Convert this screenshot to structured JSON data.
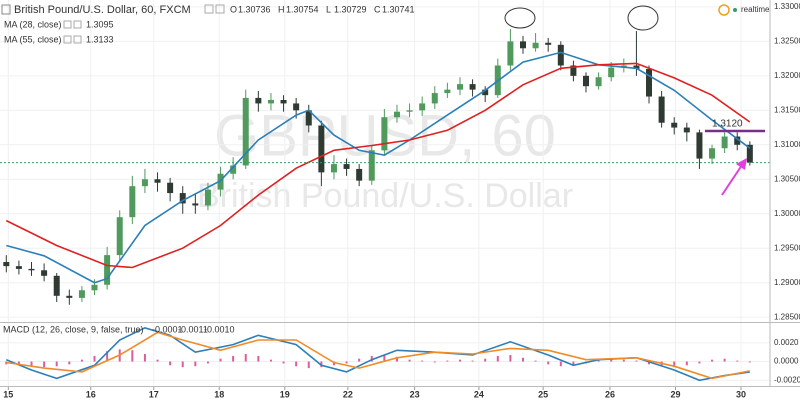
{
  "chart_data": [
    {
      "type": "candlestick",
      "title": "British Pound/U.S. Dollar, 60, FXCM",
      "status": "realtime",
      "watermark": {
        "symbol": "GBPUSD, 60",
        "description": "British Pound/U.S. Dollar"
      },
      "quote": [
        {
          "key": "O",
          "value": 1.30736
        },
        {
          "key": "H",
          "value": 1.30754
        },
        {
          "key": "L",
          "value": 1.30729
        },
        {
          "key": "C",
          "value": 1.30741
        }
      ],
      "up_color": "#4f9a5c",
      "down_color": "#2f3a33",
      "last_color": "#3a9a5a",
      "xlim": [
        -0.5,
        60.6
      ],
      "xticks": [
        {
          "value": 0.16,
          "label": "15"
        },
        {
          "value": 6.7,
          "label": "16"
        },
        {
          "value": 11.7,
          "label": "17"
        },
        {
          "value": 16.9,
          "label": "18"
        },
        {
          "value": 22.1,
          "label": "19"
        },
        {
          "value": 27.1,
          "label": "22"
        },
        {
          "value": 32.4,
          "label": "23"
        },
        {
          "value": 37.5,
          "label": "24"
        },
        {
          "value": 42.6,
          "label": "25"
        },
        {
          "value": 47.9,
          "label": "26"
        },
        {
          "value": 53.1,
          "label": "29"
        },
        {
          "value": 58.3,
          "label": "30"
        }
      ],
      "ylim": [
        1.2843,
        1.331
      ],
      "yticks": [
        {
          "value": 1.285,
          "label": "1.28500"
        },
        {
          "value": 1.29,
          "label": "1.29000"
        },
        {
          "value": 1.295,
          "label": "1.29500"
        },
        {
          "value": 1.3,
          "label": "1.30000"
        },
        {
          "value": 1.305,
          "label": "1.30500"
        },
        {
          "value": 1.31,
          "label": "1.31000"
        },
        {
          "value": 1.315,
          "label": "1.31500"
        },
        {
          "value": 1.32,
          "label": "1.32000"
        },
        {
          "value": 1.325,
          "label": "1.32500"
        },
        {
          "value": 1.33,
          "label": "1.33000"
        }
      ],
      "grid": true,
      "level_line": {
        "value": 1.312,
        "label": "1.3120",
        "color": "#7b2d8e",
        "label_color": "#e0245e"
      },
      "ohlc": [
        [
          1.293,
          1.294,
          1.2915,
          1.2924
        ],
        [
          1.2924,
          1.2932,
          1.2912,
          1.292
        ],
        [
          1.292,
          1.293,
          1.291,
          1.2918
        ],
        [
          1.2918,
          1.2928,
          1.2902,
          1.291
        ],
        [
          1.291,
          1.2914,
          1.2872,
          1.2881
        ],
        [
          1.2881,
          1.289,
          1.2868,
          1.2878
        ],
        [
          1.2878,
          1.2895,
          1.2872,
          1.2889
        ],
        [
          1.2889,
          1.2905,
          1.2882,
          1.2897
        ],
        [
          1.2897,
          1.2952,
          1.289,
          1.294
        ],
        [
          1.294,
          1.3005,
          1.293,
          1.2995
        ],
        [
          1.2995,
          1.3055,
          1.2985,
          1.304
        ],
        [
          1.304,
          1.3065,
          1.303,
          1.305
        ],
        [
          1.305,
          1.306,
          1.3032,
          1.3045
        ],
        [
          1.3045,
          1.3052,
          1.3018,
          1.303
        ],
        [
          1.303,
          1.304,
          1.3,
          1.3015
        ],
        [
          1.3015,
          1.303,
          1.3,
          1.3012
        ],
        [
          1.3012,
          1.3045,
          1.3005,
          1.3035
        ],
        [
          1.3035,
          1.3068,
          1.3025,
          1.3058
        ],
        [
          1.3058,
          1.3082,
          1.305,
          1.307
        ],
        [
          1.307,
          1.318,
          1.3065,
          1.3168
        ],
        [
          1.3168,
          1.3178,
          1.3148,
          1.316
        ],
        [
          1.316,
          1.3175,
          1.315,
          1.3165
        ],
        [
          1.3165,
          1.3172,
          1.3148,
          1.316
        ],
        [
          1.316,
          1.3168,
          1.3138,
          1.315
        ],
        [
          1.315,
          1.3158,
          1.3118,
          1.3128
        ],
        [
          1.3128,
          1.3135,
          1.304,
          1.306
        ],
        [
          1.306,
          1.3085,
          1.305,
          1.3072
        ],
        [
          1.3072,
          1.308,
          1.3055,
          1.3065
        ],
        [
          1.3065,
          1.3072,
          1.304,
          1.3048
        ],
        [
          1.3048,
          1.31,
          1.3042,
          1.3092
        ],
        [
          1.3092,
          1.3152,
          1.3085,
          1.314
        ],
        [
          1.314,
          1.3158,
          1.3132,
          1.3148
        ],
        [
          1.3148,
          1.316,
          1.314,
          1.315
        ],
        [
          1.315,
          1.317,
          1.3142,
          1.316
        ],
        [
          1.316,
          1.3185,
          1.3152,
          1.3175
        ],
        [
          1.3175,
          1.319,
          1.3168,
          1.318
        ],
        [
          1.318,
          1.3198,
          1.3172,
          1.3188
        ],
        [
          1.3188,
          1.3195,
          1.317,
          1.318
        ],
        [
          1.318,
          1.3185,
          1.3162,
          1.3172
        ],
        [
          1.3172,
          1.3225,
          1.3168,
          1.3215
        ],
        [
          1.3215,
          1.3268,
          1.3208,
          1.325
        ],
        [
          1.325,
          1.3258,
          1.3232,
          1.324
        ],
        [
          1.324,
          1.3262,
          1.3235,
          1.3248
        ],
        [
          1.3248,
          1.3255,
          1.3235,
          1.3245
        ],
        [
          1.3245,
          1.325,
          1.3208,
          1.3215
        ],
        [
          1.3215,
          1.3222,
          1.3192,
          1.32
        ],
        [
          1.32,
          1.3205,
          1.3176,
          1.3185
        ],
        [
          1.3185,
          1.3205,
          1.318,
          1.3198
        ],
        [
          1.3198,
          1.322,
          1.3192,
          1.3212
        ],
        [
          1.3212,
          1.3225,
          1.3205,
          1.3215
        ],
        [
          1.3215,
          1.3265,
          1.32,
          1.321
        ],
        [
          1.321,
          1.3215,
          1.316,
          1.317
        ],
        [
          1.317,
          1.3178,
          1.3125,
          1.3132
        ],
        [
          1.3132,
          1.314,
          1.3115,
          1.3125
        ],
        [
          1.3125,
          1.3132,
          1.3105,
          1.3118
        ],
        [
          1.3118,
          1.3122,
          1.3065,
          1.308
        ],
        [
          1.308,
          1.31,
          1.3072,
          1.3095
        ],
        [
          1.3095,
          1.3118,
          1.3088,
          1.3112
        ],
        [
          1.3112,
          1.3118,
          1.3092,
          1.31
        ],
        [
          1.31,
          1.3105,
          1.307,
          1.30741
        ]
      ],
      "series": [
        {
          "name": "MA (28, close)",
          "current": 1.3095,
          "color": "#2c7fb8",
          "x": [
            0,
            3,
            7,
            8,
            11,
            14,
            17,
            20,
            23,
            24,
            26,
            28,
            30,
            32,
            35,
            38,
            41,
            44,
            47,
            50,
            53,
            56,
            59
          ],
          "values": [
            1.2954,
            1.2939,
            1.29,
            1.2906,
            1.2983,
            1.3019,
            1.3048,
            1.3107,
            1.3143,
            1.315,
            1.3114,
            1.3092,
            1.3085,
            1.3107,
            1.3143,
            1.3179,
            1.322,
            1.3234,
            1.3216,
            1.3211,
            1.3179,
            1.3136,
            1.3095
          ]
        },
        {
          "name": "MA (55, close)",
          "current": 1.3133,
          "color": "#e02020",
          "x": [
            0,
            4,
            8,
            10,
            14,
            17,
            20,
            23,
            26,
            29,
            32,
            35,
            38,
            41,
            44,
            47,
            50,
            53,
            56,
            59
          ],
          "values": [
            1.299,
            1.2954,
            1.2925,
            1.2922,
            1.295,
            1.2983,
            1.3027,
            1.3066,
            1.3092,
            1.3099,
            1.3107,
            1.3121,
            1.315,
            1.3187,
            1.3211,
            1.3216,
            1.3218,
            1.3197,
            1.3172,
            1.3133
          ]
        }
      ]
    },
    {
      "type": "macd",
      "title": "MACD (12, 26, close, 9, false, true)",
      "ylim": [
        -0.0025,
        0.004
      ],
      "yticks": [
        {
          "value": -0.002,
          "label": "-0.0020"
        },
        {
          "value": 0,
          "label": "0.0000"
        },
        {
          "value": 0.002,
          "label": "0.0020"
        }
      ],
      "histogram": {
        "current": -0.0001,
        "color": "#e05aa0",
        "values": [
          -0.0003,
          -0.0004,
          -0.0005,
          -0.0006,
          -0.0005,
          -0.0003,
          0.0002,
          0.0006,
          0.0011,
          0.0013,
          0.0012,
          0.0008,
          0.0002,
          -0.0004,
          -0.0006,
          -0.0005,
          -0.0002,
          0.0003,
          0.0006,
          0.0008,
          0.0006,
          0.0002,
          -0.0002,
          -0.0005,
          -0.0007,
          -0.0006,
          -0.0004,
          -0.0002,
          0.0003,
          0.0006,
          0.0007,
          0.0005,
          0.0002,
          0.0001,
          -0.0001,
          0.0001,
          0.0002,
          0.0001,
          0.0003,
          0.0006,
          0.0007,
          0.0004,
          0.0001,
          -0.0003,
          -0.0005,
          -0.0004,
          -0.0002,
          0.0002,
          0.0003,
          0.0002,
          0.0001,
          -0.0003,
          -0.0005,
          -0.0006,
          -0.0004,
          -0.0002,
          0.0002,
          0.0003,
          0.0001,
          -0.0001
        ]
      },
      "series": [
        {
          "current": -0.0011,
          "color": "#2c7fb8",
          "x": [
            0,
            2,
            4,
            7,
            9,
            11,
            13,
            15,
            18,
            20,
            23,
            25,
            27,
            29,
            31,
            34,
            37,
            40,
            43,
            45,
            47,
            50,
            53,
            55,
            57,
            59
          ],
          "values": [
            0.0002,
            -0.0009,
            -0.0018,
            -0.0004,
            0.0023,
            0.0036,
            0.0028,
            0.001,
            0.0018,
            0.0028,
            0.0018,
            -0.0004,
            -0.0011,
            0.0002,
            0.0012,
            0.001,
            0.0007,
            0.0021,
            0.0007,
            -0.0004,
            0.0002,
            0.0004,
            -0.0009,
            -0.002,
            -0.0015,
            -0.0011
          ]
        },
        {
          "current": {
            "value": -0.001,
            "label": "-0.0010"
          },
          "color": "#f08c28",
          "x": [
            0,
            3,
            6,
            9,
            12,
            14,
            17,
            20,
            23,
            26,
            28,
            31,
            34,
            37,
            40,
            43,
            46,
            50,
            53,
            56,
            59
          ],
          "values": [
            -0.0001,
            -0.0007,
            -0.0011,
            0.0007,
            0.0031,
            0.0023,
            0.0012,
            0.0023,
            0.0023,
            -0.0001,
            -0.0007,
            0.0004,
            0.001,
            0.0008,
            0.0014,
            0.0012,
            0.0002,
            0.0004,
            -0.0005,
            -0.0018,
            -0.001
          ]
        }
      ]
    }
  ]
}
